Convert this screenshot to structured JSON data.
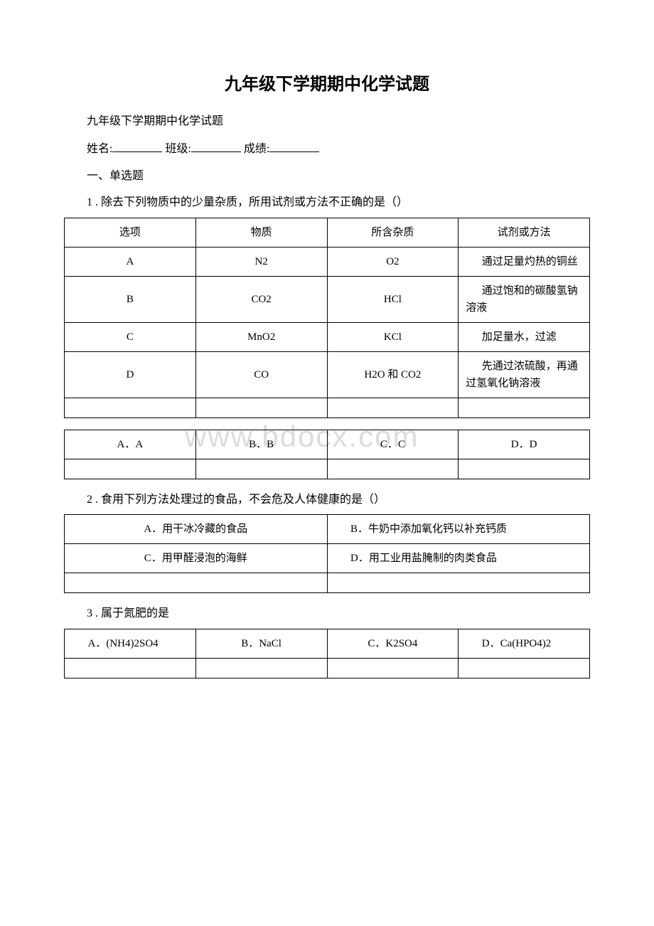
{
  "title": "九年级下学期期中化学试题",
  "subtitle": "九年级下学期期中化学试题",
  "formLabels": {
    "name": "姓名:",
    "class": "班级:",
    "score": "成绩:"
  },
  "sectionHeader": "一、单选题",
  "watermark": "www.bdocx.com",
  "q1": {
    "text": "1 . 除去下列物质中的少量杂质，所用试剂或方法不正确的是（）",
    "table": {
      "headers": [
        "选项",
        "物质",
        "所含杂质",
        "试剂或方法"
      ],
      "rows": [
        [
          "A",
          "N2",
          "O2",
          "通过足量灼热的铜丝"
        ],
        [
          "B",
          "CO2",
          "HCl",
          "通过饱和的碳酸氢钠溶液"
        ],
        [
          "C",
          "MnO2",
          "KCl",
          "加足量水，过滤"
        ],
        [
          "D",
          "CO",
          "H2O 和 CO2",
          "先通过浓硫酸，再通过氢氧化钠溶液"
        ]
      ]
    },
    "options": [
      "A．A",
      "B．B",
      "C．C",
      "D．D"
    ]
  },
  "q2": {
    "text": "2 . 食用下列方法处理过的食品，不会危及人体健康的是（）",
    "options": [
      "A．用干冰冷藏的食品",
      "B．牛奶中添加氧化钙以补充钙质",
      "C．用甲醛浸泡的海鲜",
      "D．用工业用盐腌制的肉类食品"
    ]
  },
  "q3": {
    "text": "3 . 属于氮肥的是",
    "options": [
      "A．(NH4)2SO4",
      "B．NaCl",
      "C．K2SO4",
      "D．Ca(HPO4)2"
    ]
  }
}
